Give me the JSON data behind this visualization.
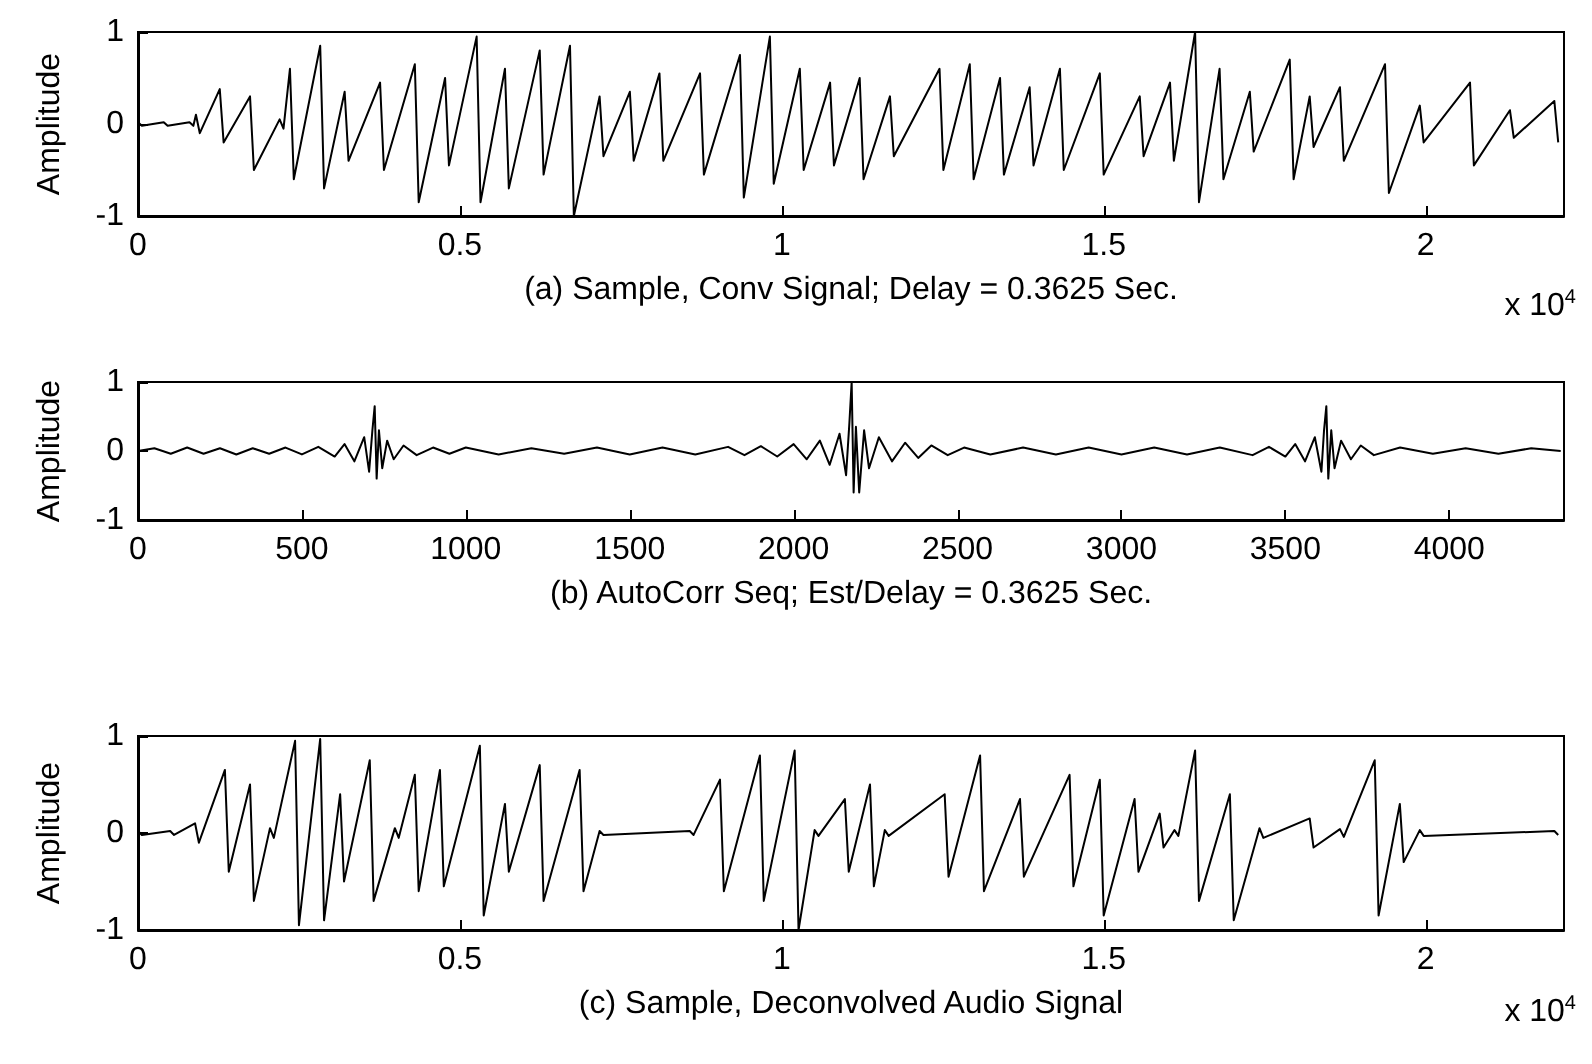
{
  "chart_data": [
    {
      "type": "line",
      "xlabel": "(a) Sample, Conv Signal; Delay = 0.3625 Sec.",
      "ylabel": "Amplitude",
      "annotations": [
        "x 10$^{4}$"
      ],
      "xlim": [
        0,
        2.215
      ],
      "xticks": [
        0,
        0.5,
        1,
        1.5,
        2
      ],
      "ylim": [
        -1,
        1
      ],
      "yticks": [
        -1,
        0,
        1
      ],
      "series": [
        {
          "color": "#000000",
          "x": [
            0,
            0.006,
            0.04,
            0.046,
            0.08,
            0.086,
            0.09,
            0.096,
            0.127,
            0.133,
            0.174,
            0.18,
            0.22,
            0.226,
            0.236,
            0.242,
            0.283,
            0.289,
            0.321,
            0.327,
            0.376,
            0.382,
            0.43,
            0.436,
            0.477,
            0.483,
            0.526,
            0.532,
            0.57,
            0.576,
            0.624,
            0.63,
            0.671,
            0.677,
            0.717,
            0.723,
            0.764,
            0.77,
            0.81,
            0.816,
            0.873,
            0.879,
            0.935,
            0.941,
            0.9815,
            0.9875,
            1.028,
            1.034,
            1.075,
            1.081,
            1.121,
            1.127,
            1.168,
            1.174,
            1.245,
            1.251,
            1.292,
            1.298,
            1.339,
            1.345,
            1.385,
            1.391,
            1.432,
            1.438,
            1.494,
            1.5,
            1.556,
            1.562,
            1.603,
            1.609,
            1.642,
            1.648,
            1.68,
            1.686,
            1.727,
            1.733,
            1.789,
            1.795,
            1.82,
            1.826,
            1.867,
            1.873,
            1.937,
            1.943,
            1.991,
            1.997,
            2.069,
            2.075,
            2.131,
            2.137,
            2.2,
            2.206
          ],
          "values": [
            0.02,
            -0.02,
            0.02,
            -0.02,
            0.02,
            -0.02,
            0.1,
            -0.1,
            0.38,
            -0.2,
            0.3,
            -0.5,
            0.05,
            -0.05,
            0.6,
            -0.6,
            0.85,
            -0.7,
            0.35,
            -0.4,
            0.45,
            -0.5,
            0.65,
            -0.85,
            0.5,
            -0.45,
            0.95,
            -0.85,
            0.6,
            -0.7,
            0.8,
            -0.55,
            0.85,
            -1,
            0.3,
            -0.35,
            0.35,
            -0.4,
            0.55,
            -0.4,
            0.55,
            -0.55,
            0.75,
            -0.8,
            0.95,
            -0.65,
            0.6,
            -0.5,
            0.45,
            -0.45,
            0.5,
            -0.6,
            0.3,
            -0.35,
            0.6,
            -0.5,
            0.65,
            -0.6,
            0.5,
            -0.55,
            0.4,
            -0.45,
            0.6,
            -0.5,
            0.55,
            -0.55,
            0.3,
            -0.35,
            0.45,
            -0.4,
            1,
            -0.85,
            0.6,
            -0.6,
            0.35,
            -0.3,
            0.7,
            -0.6,
            0.3,
            -0.25,
            0.4,
            -0.4,
            0.65,
            -0.75,
            0.2,
            -0.2,
            0.45,
            -0.45,
            0.15,
            -0.15,
            0.25,
            -0.2
          ]
        }
      ]
    },
    {
      "type": "line",
      "xlabel": "(b) AutoCorr Seq; Est/Delay = 0.3625 Sec.",
      "ylabel": "Amplitude",
      "xlim": [
        0,
        4350
      ],
      "xticks": [
        0,
        500,
        1000,
        1500,
        2000,
        2500,
        3000,
        3500,
        4000
      ],
      "ylim": [
        -1,
        1
      ],
      "yticks": [
        -1,
        0,
        1
      ],
      "series": [
        {
          "color": "#000000",
          "x": [
            0,
            50,
            100,
            150,
            200,
            250,
            300,
            350,
            400,
            450,
            500,
            550,
            600,
            630,
            660,
            690,
            705,
            715,
            722,
            728,
            735,
            745,
            760,
            780,
            810,
            850,
            900,
            950,
            1000,
            1100,
            1200,
            1300,
            1400,
            1500,
            1600,
            1700,
            1800,
            1850,
            1900,
            1950,
            2000,
            2040,
            2080,
            2110,
            2140,
            2160,
            2170,
            2177,
            2183,
            2190,
            2200,
            2215,
            2230,
            2260,
            2300,
            2340,
            2380,
            2420,
            2470,
            2520,
            2600,
            2700,
            2800,
            2900,
            3000,
            3100,
            3200,
            3300,
            3400,
            3450,
            3500,
            3530,
            3560,
            3590,
            3610,
            3618,
            3625,
            3631,
            3640,
            3650,
            3670,
            3700,
            3730,
            3770,
            3850,
            3950,
            4050,
            4150,
            4250,
            4340
          ],
          "values": [
            0,
            0.04,
            -0.04,
            0.05,
            -0.04,
            0.04,
            -0.05,
            0.04,
            -0.04,
            0.05,
            -0.05,
            0.06,
            -0.08,
            0.1,
            -0.15,
            0.2,
            -0.3,
            0.3,
            0.65,
            -0.4,
            0.3,
            -0.25,
            0.15,
            -0.12,
            0.08,
            -0.06,
            0.05,
            -0.04,
            0.05,
            -0.05,
            0.04,
            -0.04,
            0.05,
            -0.05,
            0.05,
            -0.05,
            0.06,
            -0.06,
            0.07,
            -0.08,
            0.1,
            -0.12,
            0.15,
            -0.2,
            0.25,
            -0.35,
            0.4,
            1,
            -0.6,
            0.35,
            -0.6,
            0.3,
            -0.25,
            0.2,
            -0.15,
            0.12,
            -0.1,
            0.08,
            -0.06,
            0.05,
            -0.05,
            0.05,
            -0.05,
            0.05,
            -0.05,
            0.05,
            -0.05,
            0.05,
            -0.06,
            0.06,
            -0.08,
            0.1,
            -0.15,
            0.2,
            -0.3,
            0.3,
            0.65,
            -0.4,
            0.3,
            -0.25,
            0.15,
            -0.12,
            0.08,
            -0.06,
            0.05,
            -0.04,
            0.04,
            -0.04,
            0.04,
            0
          ]
        }
      ]
    },
    {
      "type": "line",
      "xlabel": "(c) Sample, Deconvolved Audio Signal",
      "ylabel": "Amplitude",
      "annotations": [
        "x 10$^{4}$"
      ],
      "xlim": [
        0,
        2.215
      ],
      "xticks": [
        0,
        0.5,
        1,
        1.5,
        2
      ],
      "ylim": [
        -1,
        1
      ],
      "yticks": [
        -1,
        0,
        1
      ],
      "series": [
        {
          "color": "#000000",
          "x": [
            0,
            0.006,
            0.05,
            0.056,
            0.0886,
            0.0946,
            0.135,
            0.141,
            0.174,
            0.18,
            0.205,
            0.211,
            0.244,
            0.25,
            0.283,
            0.289,
            0.314,
            0.32,
            0.36,
            0.366,
            0.399,
            0.405,
            0.43,
            0.436,
            0.469,
            0.475,
            0.531,
            0.537,
            0.57,
            0.576,
            0.624,
            0.63,
            0.686,
            0.692,
            0.717,
            0.723,
            0.857,
            0.863,
            0.904,
            0.91,
            0.966,
            0.972,
            1.02,
            1.026,
            1.051,
            1.057,
            1.098,
            1.104,
            1.137,
            1.143,
            1.16,
            1.166,
            1.253,
            1.259,
            1.308,
            1.314,
            1.37,
            1.376,
            1.447,
            1.453,
            1.494,
            1.5,
            1.548,
            1.554,
            1.587,
            1.593,
            1.61,
            1.616,
            1.642,
            1.648,
            1.696,
            1.702,
            1.742,
            1.748,
            1.82,
            1.826,
            1.867,
            1.873,
            1.921,
            1.927,
            1.96,
            1.966,
            1.991,
            1.997,
            2.2,
            2.206
          ],
          "values": [
            0.02,
            -0.02,
            0.02,
            -0.02,
            0.1,
            -0.1,
            0.65,
            -0.4,
            0.5,
            -0.7,
            0.05,
            -0.05,
            0.95,
            -0.95,
            0.97,
            -0.9,
            0.4,
            -0.5,
            0.75,
            -0.7,
            0.05,
            -0.05,
            0.6,
            -0.6,
            0.65,
            -0.55,
            0.9,
            -0.85,
            0.3,
            -0.4,
            0.7,
            -0.7,
            0.65,
            -0.6,
            0.02,
            -0.02,
            0.02,
            -0.02,
            0.55,
            -0.6,
            0.8,
            -0.7,
            0.85,
            -1,
            0.03,
            -0.03,
            0.35,
            -0.4,
            0.5,
            -0.55,
            0.03,
            -0.03,
            0.4,
            -0.45,
            0.8,
            -0.6,
            0.35,
            -0.45,
            0.6,
            -0.55,
            0.55,
            -0.85,
            0.35,
            -0.4,
            0.2,
            -0.15,
            0.03,
            -0.03,
            0.85,
            -0.7,
            0.4,
            -0.9,
            0.05,
            -0.05,
            0.15,
            -0.15,
            0.04,
            -0.04,
            0.75,
            -0.85,
            0.3,
            -0.3,
            0.03,
            -0.03,
            0.02,
            -0.02
          ]
        }
      ]
    }
  ]
}
